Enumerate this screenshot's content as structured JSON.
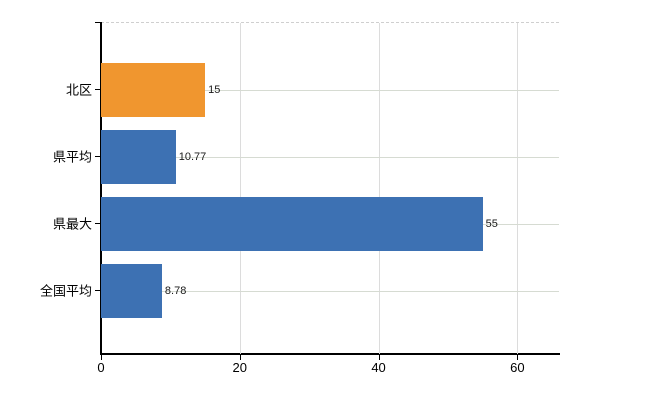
{
  "chart_data": {
    "type": "bar",
    "orientation": "horizontal",
    "title": "",
    "categories": [
      "北区",
      "県平均",
      "県最大",
      "全国平均"
    ],
    "values": [
      15,
      10.77,
      55,
      8.78
    ],
    "data_labels": [
      "15",
      "10.77",
      "55",
      "8.78"
    ],
    "bar_colors": [
      "#f0962f",
      "#3d71b3",
      "#3d71b3",
      "#3d71b3"
    ],
    "x_tick_labels": [
      "0",
      "20",
      "40",
      "60"
    ],
    "x_tick_values": [
      0,
      20,
      40,
      60
    ],
    "xlim": [
      0,
      66
    ],
    "grid": true,
    "legend_position": "none",
    "colors": {
      "highlight_bar": "#f0962f",
      "default_bar": "#3d71b3",
      "h_grid": "#d6dbd2",
      "v_grid": "#dcdcdc",
      "axis": "#000000",
      "text": "#000000"
    }
  }
}
